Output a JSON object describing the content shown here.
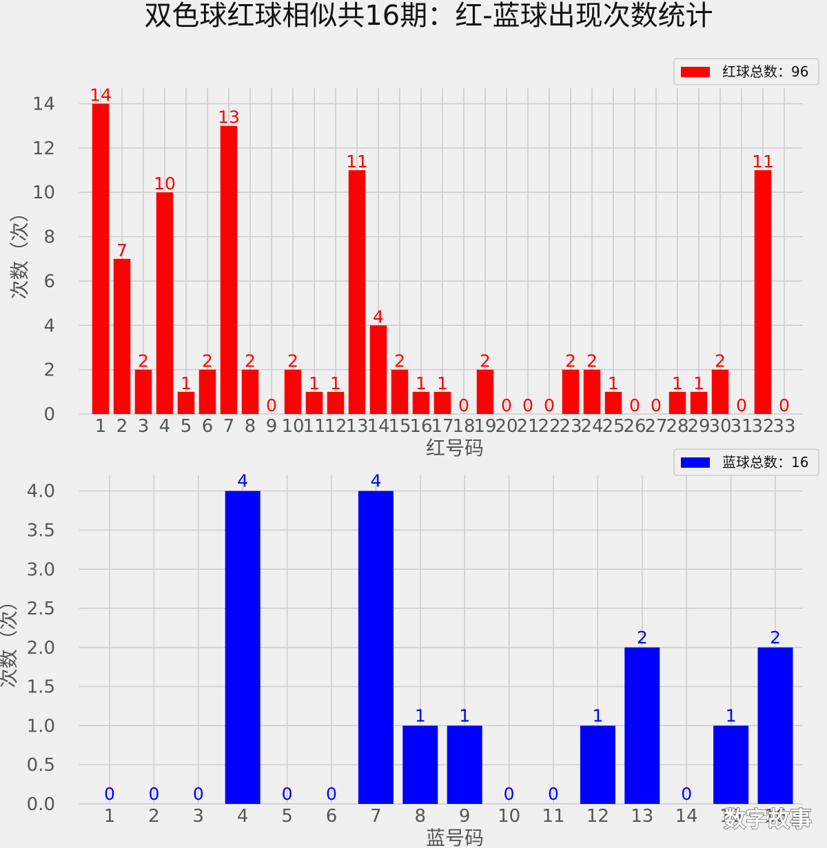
{
  "title": "双色球红球相似共16期：红-蓝球出现次数统计",
  "watermark": "数字故事",
  "chart_data": [
    {
      "type": "bar",
      "name": "red",
      "categories": [
        "1",
        "2",
        "3",
        "4",
        "5",
        "6",
        "7",
        "8",
        "9",
        "10",
        "11",
        "12",
        "13",
        "14",
        "15",
        "16",
        "17",
        "18",
        "19",
        "20",
        "21",
        "22",
        "23",
        "24",
        "25",
        "26",
        "27",
        "28",
        "29",
        "30",
        "31",
        "32",
        "33"
      ],
      "values": [
        14,
        7,
        2,
        10,
        1,
        2,
        13,
        2,
        0,
        2,
        1,
        1,
        11,
        4,
        2,
        1,
        1,
        0,
        2,
        0,
        0,
        0,
        2,
        2,
        1,
        0,
        0,
        1,
        1,
        2,
        0,
        11,
        0
      ],
      "series_label": "红球总数：96",
      "xlabel": "红号码",
      "ylabel": "次数（次）",
      "ylim": [
        0,
        14.7
      ],
      "yticks": [
        "0",
        "2",
        "4",
        "6",
        "8",
        "10",
        "12",
        "14"
      ],
      "bar_color": "#ff0000",
      "label_color": "#ff0000",
      "grid": true,
      "legend_position": "top-right"
    },
    {
      "type": "bar",
      "name": "blue",
      "categories": [
        "1",
        "2",
        "3",
        "4",
        "5",
        "6",
        "7",
        "8",
        "9",
        "10",
        "11",
        "12",
        "13",
        "14",
        "15",
        "16"
      ],
      "values": [
        0,
        0,
        0,
        4,
        0,
        0,
        4,
        1,
        1,
        0,
        0,
        1,
        2,
        0,
        1,
        2
      ],
      "series_label": "蓝球总数：16",
      "xlabel": "蓝号码",
      "ylabel": "次数（次）",
      "ylim": [
        0,
        4.2
      ],
      "yticks": [
        "0.0",
        "0.5",
        "1.0",
        "1.5",
        "2.0",
        "2.5",
        "3.0",
        "3.5",
        "4.0"
      ],
      "bar_color": "#0000ff",
      "label_color": "#0000ff",
      "grid": true,
      "legend_position": "top-right"
    }
  ]
}
